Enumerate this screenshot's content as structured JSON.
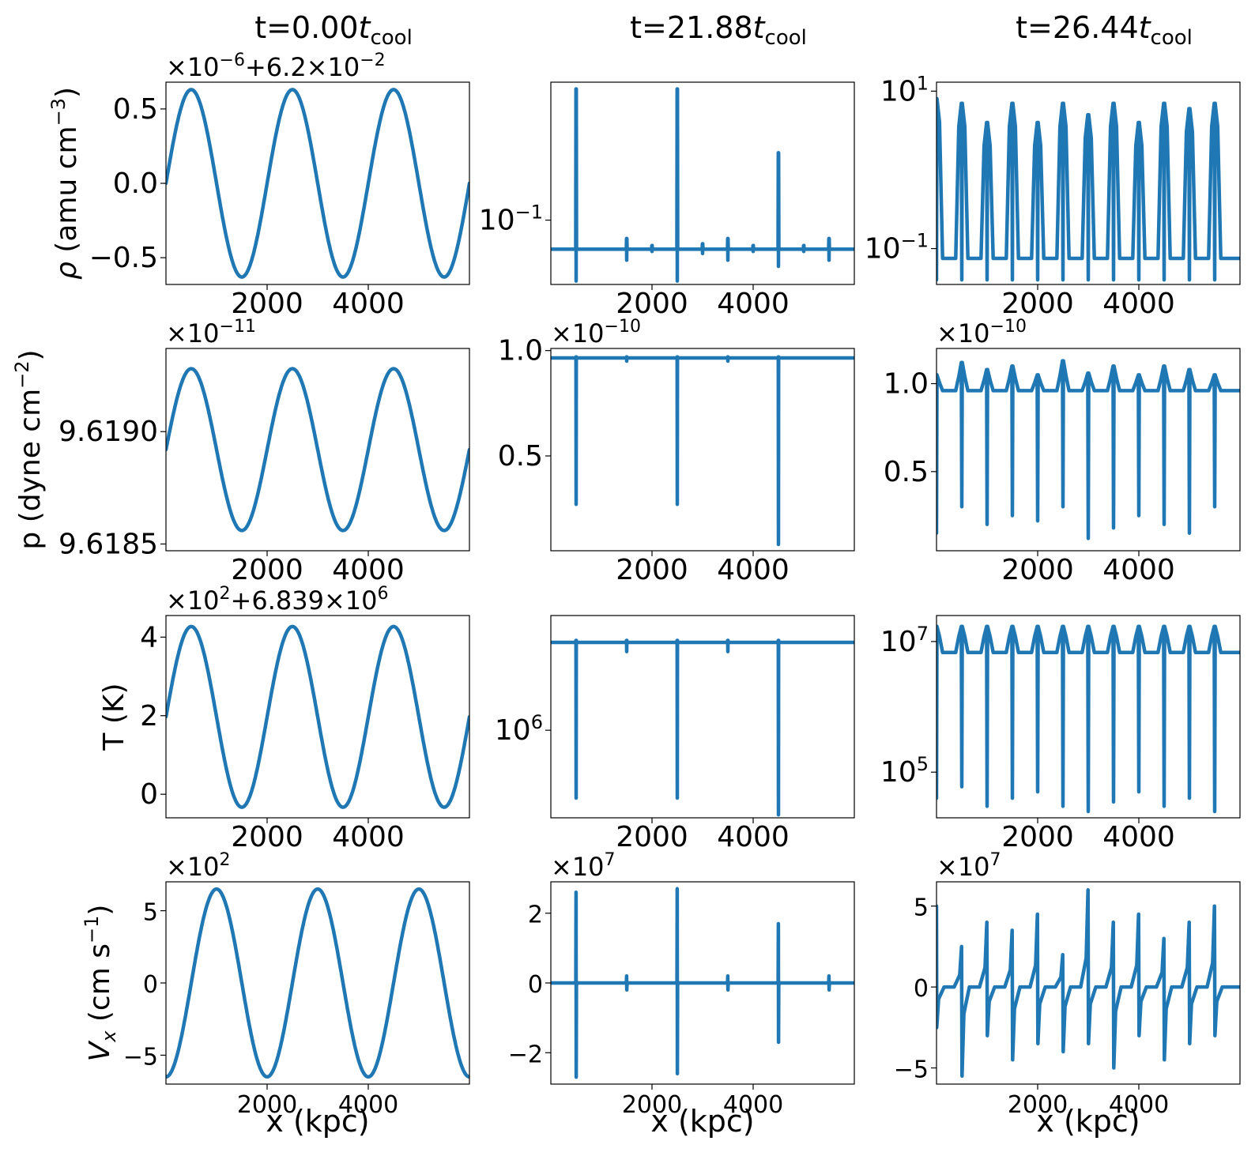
{
  "figure": {
    "columns": [
      {
        "title_main": "t=0.00",
        "title_var": "t",
        "title_sub": "cool"
      },
      {
        "title_main": "t=21.88",
        "title_var": "t",
        "title_sub": "cool"
      },
      {
        "title_main": "t=26.44",
        "title_var": "t",
        "title_sub": "cool"
      }
    ],
    "row_labels": [
      {
        "pre": "ρ (amu cm",
        "sup": "−3",
        "post": ")"
      },
      {
        "pre": "p (dyne cm",
        "sup": "−2",
        "post": ")"
      },
      {
        "pre": "T (K)",
        "sup": "",
        "post": ""
      },
      {
        "pre": "V",
        "sub": "x",
        "mid": " (cm s",
        "sup": "−1",
        "post": ")"
      }
    ],
    "x_label": "x (kpc)",
    "line_color": "#1f77b4",
    "x_ticks": [
      "2000",
      "4000"
    ]
  },
  "chart_data": [
    {
      "type": "line",
      "row": 0,
      "col": 0,
      "xlabel": "x (kpc)",
      "ylabel": "ρ (amu cm−3)",
      "offset_label": "×10⁻⁶+6.2×10⁻²",
      "offset_parts": [
        "×10",
        "−6",
        "+6.2×10",
        "−2"
      ],
      "xlim": [
        0,
        6000
      ],
      "ylim": [
        -0.68,
        0.68
      ],
      "yticks": [
        0.5,
        0.0,
        -0.5
      ],
      "ytick_labels": [
        "0.5",
        "0.0",
        "−0.5"
      ],
      "series": [
        {
          "kind": "sine",
          "amplitude": 0.63,
          "period": 2000,
          "phase": 0
        }
      ]
    },
    {
      "type": "line",
      "row": 0,
      "col": 1,
      "xlabel": "x (kpc)",
      "yscale": "log",
      "xlim": [
        0,
        6000
      ],
      "ylim": [
        0.035,
        0.95
      ],
      "yticks": [
        0.1
      ],
      "ytick_labels": [
        "10⁻¹"
      ],
      "ytick_parts": [
        [
          "10",
          "−1"
        ]
      ],
      "series": [
        {
          "kind": "spikes",
          "baseline": 0.0622,
          "spikes": [
            [
              500,
              0.85,
              0.037
            ],
            [
              1500,
              0.074,
              0.052
            ],
            [
              2000,
              0.066,
              0.06
            ],
            [
              2500,
              0.85,
              0.037
            ],
            [
              3000,
              0.068,
              0.058
            ],
            [
              3500,
              0.074,
              0.052
            ],
            [
              4000,
              0.066,
              0.06
            ],
            [
              4500,
              0.3,
              0.047
            ],
            [
              5000,
              0.066,
              0.06
            ],
            [
              5500,
              0.074,
              0.052
            ]
          ]
        }
      ]
    },
    {
      "type": "line",
      "row": 0,
      "col": 2,
      "xlabel": "x (kpc)",
      "yscale": "log",
      "xlim": [
        0,
        6000
      ],
      "ylim": [
        0.035,
        13
      ],
      "yticks": [
        10,
        0.1
      ],
      "ytick_labels": [
        "10¹",
        "10⁻¹"
      ],
      "ytick_parts": [
        [
          "10",
          "1"
        ],
        [
          "10",
          "−1"
        ]
      ],
      "series": [
        {
          "kind": "periodic",
          "baseline": 0.075,
          "period": 500,
          "start": 0,
          "spike_tops": [
            8,
            7,
            4,
            7,
            4,
            7,
            5,
            7,
            4,
            7,
            6,
            7
          ],
          "dip": 0.04
        }
      ]
    },
    {
      "type": "line",
      "row": 1,
      "col": 0,
      "xlabel": "x (kpc)",
      "ylabel": "p (dyne cm−2)",
      "offset_label": "×10⁻¹¹",
      "offset_parts": [
        "×10",
        "−11",
        "",
        ""
      ],
      "xlim": [
        0,
        6000
      ],
      "ylim": [
        9.61847,
        9.61937
      ],
      "yticks": [
        9.619,
        9.6185
      ],
      "ytick_labels": [
        "9.6190",
        "9.6185"
      ],
      "series": [
        {
          "kind": "sine",
          "center": 9.61892,
          "amplitude": 0.00036,
          "period": 2000,
          "phase": 0
        }
      ]
    },
    {
      "type": "line",
      "row": 1,
      "col": 1,
      "xlabel": "x (kpc)",
      "offset_label": "×10⁻¹⁰",
      "offset_parts": [
        "×10",
        "−10",
        "",
        ""
      ],
      "xlim": [
        0,
        6000
      ],
      "ylim": [
        0.05,
        1.01
      ],
      "yticks": [
        1.0,
        0.5
      ],
      "ytick_labels": [
        "1.0",
        "0.5"
      ],
      "series": [
        {
          "kind": "spikes",
          "baseline": 0.965,
          "spikes": [
            [
              500,
              0.97,
              0.27
            ],
            [
              1500,
              0.97,
              0.95
            ],
            [
              2500,
              0.97,
              0.27
            ],
            [
              3500,
              0.97,
              0.95
            ],
            [
              4500,
              0.97,
              0.08
            ]
          ]
        }
      ]
    },
    {
      "type": "line",
      "row": 1,
      "col": 2,
      "xlabel": "x (kpc)",
      "offset_label": "×10⁻¹⁰",
      "offset_parts": [
        "×10",
        "−10",
        "",
        ""
      ],
      "xlim": [
        0,
        6000
      ],
      "ylim": [
        0.05,
        1.2
      ],
      "yticks": [
        1.0,
        0.5
      ],
      "ytick_labels": [
        "1.0",
        "0.5"
      ],
      "series": [
        {
          "kind": "periodic",
          "baseline": 0.96,
          "period": 500,
          "start": 0,
          "spike_tops": [
            1.05,
            1.12,
            1.08,
            1.1,
            1.05,
            1.13,
            1.06,
            1.1,
            1.05,
            1.1,
            1.08,
            1.05
          ],
          "dips": [
            0.15,
            0.3,
            0.2,
            0.25,
            0.22,
            0.3,
            0.12,
            0.18,
            0.25,
            0.2,
            0.15,
            0.3
          ]
        }
      ]
    },
    {
      "type": "line",
      "row": 2,
      "col": 0,
      "xlabel": "x (kpc)",
      "ylabel": "T (K)",
      "offset_label": "×10²+6.839×10⁶",
      "offset_parts": [
        "×10",
        "2",
        "+6.839×10",
        "6"
      ],
      "xlim": [
        0,
        6000
      ],
      "ylim": [
        -0.6,
        4.55
      ],
      "yticks": [
        4,
        2,
        0
      ],
      "ytick_labels": [
        "4",
        "2",
        "0"
      ],
      "series": [
        {
          "kind": "sine",
          "center": 1.97,
          "amplitude": 2.3,
          "period": 2000,
          "phase": 0
        }
      ]
    },
    {
      "type": "line",
      "row": 2,
      "col": 1,
      "xlabel": "x (kpc)",
      "yscale": "log",
      "xlim": [
        0,
        6000
      ],
      "ylim": [
        150000,
        12000000
      ],
      "yticks": [
        1000000
      ],
      "ytick_labels": [
        "10⁶"
      ],
      "ytick_parts": [
        [
          "10",
          "6"
        ]
      ],
      "series": [
        {
          "kind": "spikes",
          "baseline": 6700000,
          "spikes": [
            [
              500,
              7000000,
              230000
            ],
            [
              1500,
              7000000,
              5500000
            ],
            [
              2500,
              7000000,
              230000
            ],
            [
              3500,
              7000000,
              5500000
            ],
            [
              4500,
              7000000,
              160000
            ]
          ]
        }
      ]
    },
    {
      "type": "line",
      "row": 2,
      "col": 2,
      "xlabel": "x (kpc)",
      "yscale": "log",
      "xlim": [
        0,
        6000
      ],
      "ylim": [
        20000,
        25000000
      ],
      "yticks": [
        10000000,
        100000
      ],
      "ytick_labels": [
        "10⁷",
        "10⁵"
      ],
      "ytick_parts": [
        [
          "10",
          "7"
        ],
        [
          "10",
          "5"
        ]
      ],
      "series": [
        {
          "kind": "periodic",
          "baseline": 6800000,
          "period": 500,
          "start": 0,
          "spike_tops": [
            17000000,
            17000000,
            17000000,
            17000000,
            17000000,
            17000000,
            17000000,
            17000000,
            17000000,
            17000000,
            17000000,
            17000000
          ],
          "dips": [
            40000,
            60000,
            30000,
            40000,
            50000,
            30000,
            25000,
            35000,
            50000,
            30000,
            40000,
            25000
          ]
        }
      ]
    },
    {
      "type": "line",
      "row": 3,
      "col": 0,
      "xlabel": "x (kpc)",
      "ylabel": "Vx (cm s−1)",
      "offset_label": "×10²",
      "offset_parts": [
        "×10",
        "2",
        "",
        ""
      ],
      "xlim": [
        0,
        6000
      ],
      "ylim": [
        -7.0,
        7.0
      ],
      "yticks": [
        5,
        0,
        -5
      ],
      "ytick_labels": [
        "5",
        "0",
        "−5"
      ],
      "series": [
        {
          "kind": "negcos",
          "amplitude": 6.5,
          "period": 2000
        }
      ]
    },
    {
      "type": "line",
      "row": 3,
      "col": 1,
      "xlabel": "x (kpc)",
      "offset_label": "×10⁷",
      "offset_parts": [
        "×10",
        "7",
        "",
        ""
      ],
      "xlim": [
        0,
        6000
      ],
      "ylim": [
        -2.9,
        2.9
      ],
      "yticks": [
        2,
        0,
        -2
      ],
      "ytick_labels": [
        "2",
        "0",
        "−2"
      ],
      "series": [
        {
          "kind": "bipolar",
          "baseline": 0,
          "spikes": [
            [
              500,
              2.6,
              -2.7
            ],
            [
              1500,
              0.2,
              -0.2
            ],
            [
              2500,
              2.7,
              -2.6
            ],
            [
              3500,
              0.2,
              -0.2
            ],
            [
              4500,
              1.7,
              -1.7
            ],
            [
              5500,
              0.2,
              -0.2
            ]
          ]
        }
      ]
    },
    {
      "type": "line",
      "row": 3,
      "col": 2,
      "xlabel": "x (kpc)",
      "offset_label": "×10⁷",
      "offset_parts": [
        "×10",
        "7",
        "",
        ""
      ],
      "xlim": [
        0,
        6000
      ],
      "ylim": [
        -6.0,
        6.5
      ],
      "yticks": [
        5,
        0,
        -5
      ],
      "ytick_labels": [
        "5",
        "0",
        "−5"
      ],
      "series": [
        {
          "kind": "sawtooth",
          "baseline": 0,
          "period": 500,
          "start": 0,
          "highs": [
            5.0,
            2.5,
            4.0,
            3.5,
            4.5,
            2.0,
            6.0,
            4.0,
            4.5,
            3.0,
            4.0,
            5.0
          ],
          "lows": [
            -2.5,
            -5.5,
            -3.0,
            -4.5,
            -3.5,
            -4.0,
            -3.5,
            -5.0,
            -3.0,
            -4.5,
            -3.5,
            -3.0
          ]
        }
      ]
    }
  ]
}
